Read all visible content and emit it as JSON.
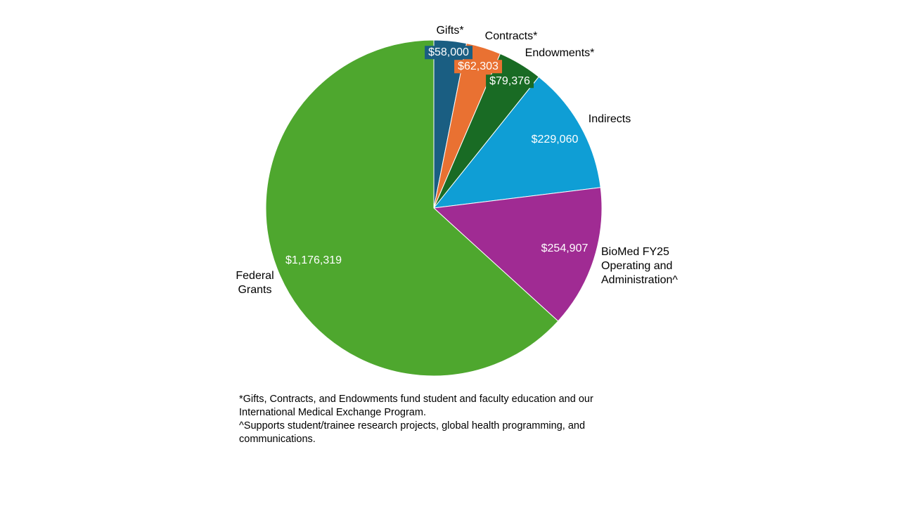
{
  "chart_data": {
    "type": "pie",
    "categories": [
      "Gifts*",
      "Contracts*",
      "Endowments*",
      "Indirects",
      "BioMed FY25 Operating and Administration^",
      "Federal Grants"
    ],
    "values": [
      58000,
      62303,
      79376,
      229060,
      254907,
      1176319
    ],
    "value_labels": [
      "$58,000",
      "$62,303",
      "$79,376",
      "$229,060",
      "$254,907",
      "$1,176,319"
    ],
    "colors": [
      "#1a5e82",
      "#e97132",
      "#196b24",
      "#0f9ed5",
      "#a02b93",
      "#4ea72e"
    ],
    "notes": [
      "*Gifts, Contracts, and Endowments fund student and faculty education and our International Medical Exchange Program.",
      "^Supports student/trainee research projects, global health programming, and communications."
    ]
  }
}
